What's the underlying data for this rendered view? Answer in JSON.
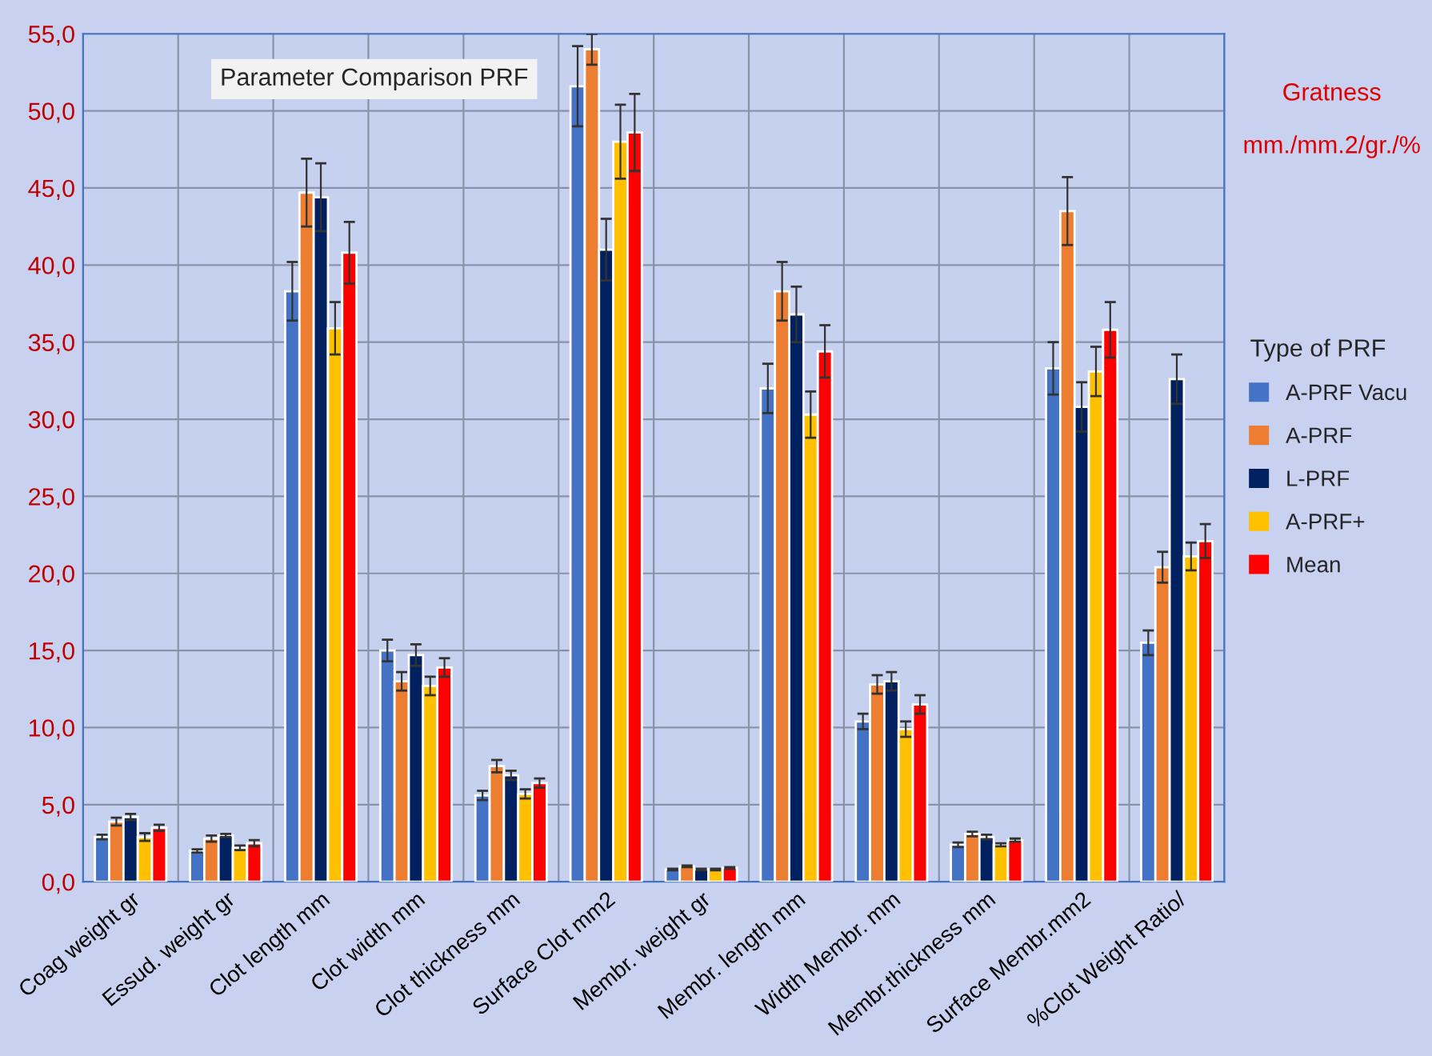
{
  "chart_data": {
    "type": "bar",
    "title": "Parameter Comparison PRF",
    "categories": [
      "Coag weight gr",
      "Essud. weight gr",
      "Clot length mm",
      "Clot width mm",
      "Clot thickness mm",
      "Surface Clot mm2",
      "Membr. weight gr",
      "Membr. length mm",
      "Width Membr. mm",
      "Membr.thickness mm",
      "Surface Membr.mm2",
      "%Clot Weight Ratio/"
    ],
    "series": [
      {
        "name": "A-PRF Vacu",
        "color": "#4472c4",
        "values": [
          2.9,
          2.0,
          38.3,
          15.0,
          5.6,
          51.6,
          0.8,
          32.0,
          10.4,
          2.4,
          33.3,
          15.5
        ],
        "errors": [
          0.15,
          0.1,
          1.9,
          0.7,
          0.3,
          2.6,
          0.05,
          1.6,
          0.5,
          0.15,
          1.7,
          0.8
        ]
      },
      {
        "name": "A-PRF",
        "color": "#ed7d31",
        "values": [
          3.9,
          2.8,
          44.7,
          13.0,
          7.5,
          54.0,
          1.0,
          38.3,
          12.8,
          3.1,
          43.5,
          20.4
        ],
        "errors": [
          0.25,
          0.2,
          2.2,
          0.6,
          0.4,
          1.0,
          0.05,
          1.9,
          0.6,
          0.15,
          2.2,
          1.0
        ]
      },
      {
        "name": "L-PRF",
        "color": "#002060",
        "values": [
          4.2,
          3.0,
          44.4,
          14.7,
          6.9,
          41.0,
          0.8,
          36.8,
          13.0,
          2.9,
          30.8,
          32.6
        ],
        "errors": [
          0.2,
          0.1,
          2.2,
          0.7,
          0.3,
          2.0,
          0.05,
          1.8,
          0.6,
          0.15,
          1.6,
          1.6
        ]
      },
      {
        "name": "A-PRF+",
        "color": "#ffc000",
        "values": [
          2.9,
          2.2,
          35.9,
          12.7,
          5.7,
          48.0,
          0.8,
          30.3,
          9.9,
          2.4,
          33.1,
          21.1
        ],
        "errors": [
          0.25,
          0.15,
          1.7,
          0.6,
          0.3,
          2.4,
          0.05,
          1.5,
          0.5,
          0.1,
          1.6,
          0.9
        ]
      },
      {
        "name": "Mean",
        "color": "#ff0000",
        "values": [
          3.5,
          2.5,
          40.8,
          13.9,
          6.4,
          48.6,
          0.9,
          34.4,
          11.5,
          2.7,
          35.8,
          22.1
        ],
        "errors": [
          0.2,
          0.2,
          2.0,
          0.6,
          0.3,
          2.5,
          0.05,
          1.7,
          0.6,
          0.1,
          1.8,
          1.1
        ]
      }
    ],
    "ylim": [
      0,
      55
    ],
    "yticks": [
      {
        "value": 0,
        "label": "0,0"
      },
      {
        "value": 5,
        "label": "5,0"
      },
      {
        "value": 10,
        "label": "10,0"
      },
      {
        "value": 15,
        "label": "15,0"
      },
      {
        "value": 20,
        "label": "20,0"
      },
      {
        "value": 25,
        "label": "25,0"
      },
      {
        "value": 30,
        "label": "30,0"
      },
      {
        "value": 35,
        "label": "35,0"
      },
      {
        "value": 40,
        "label": "40,0"
      },
      {
        "value": 45,
        "label": "45,0"
      },
      {
        "value": 50,
        "label": "50,0"
      },
      {
        "value": 55,
        "label": "55,0"
      }
    ],
    "annotations": [
      "Gratness",
      "mm./mm.2/gr./%"
    ],
    "legend_title": "Type of PRF",
    "legend": "right",
    "grid": true
  }
}
